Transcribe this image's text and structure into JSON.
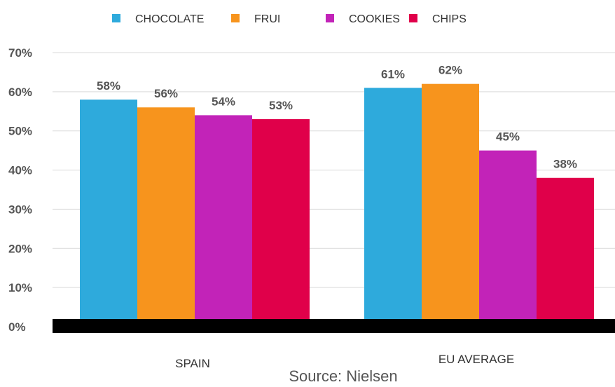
{
  "chart_data": {
    "type": "bar",
    "categories": [
      "SPAIN",
      "EU AVERAGE"
    ],
    "series": [
      {
        "name": "CHOCOLATE",
        "color": "#2eaadc",
        "values": [
          58,
          61
        ],
        "labels": [
          "58%",
          "61%"
        ]
      },
      {
        "name": "FRUI",
        "color": "#f7941d",
        "values": [
          56,
          62
        ],
        "labels": [
          "56%",
          "62%"
        ]
      },
      {
        "name": "COOKIES",
        "color": "#c223b8",
        "values": [
          54,
          45
        ],
        "labels": [
          "54%",
          "45%"
        ]
      },
      {
        "name": "CHIPS",
        "color": "#e0004a",
        "values": [
          53,
          38
        ],
        "labels": [
          "53%",
          "38%"
        ]
      }
    ],
    "ylim": [
      0,
      70
    ],
    "yticks": [
      0,
      10,
      20,
      30,
      40,
      50,
      60,
      70
    ],
    "ytick_labels": [
      "0%",
      "10%",
      "20%",
      "30%",
      "40%",
      "50%",
      "60%",
      "70%"
    ],
    "xlabel": "",
    "ylabel": "",
    "grid": true,
    "legend_position": "top",
    "source": "Source: Nielsen"
  }
}
